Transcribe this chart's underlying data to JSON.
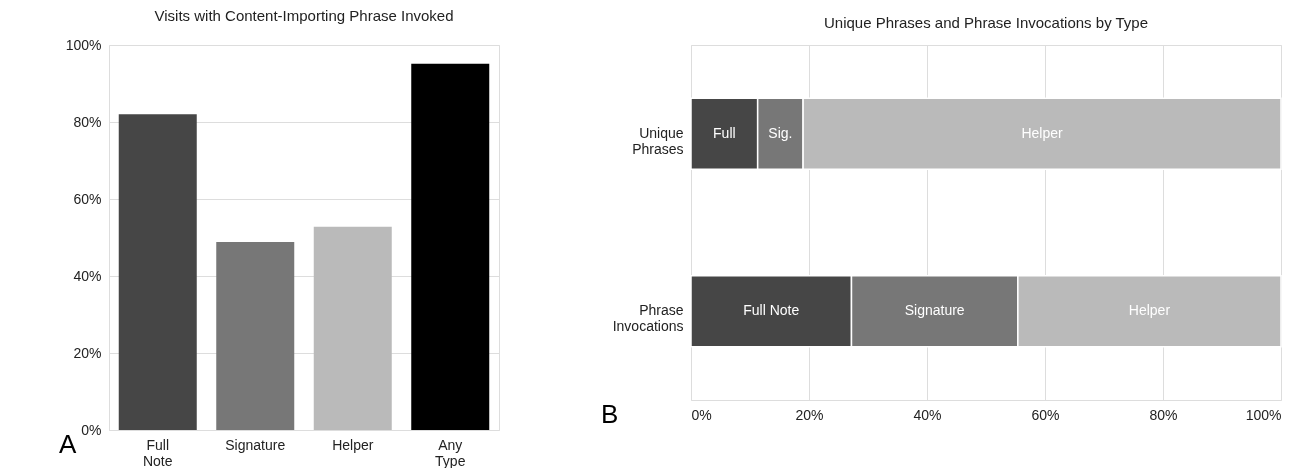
{
  "chart_data": [
    {
      "type": "bar",
      "title": "Visits with Content-Importing Phrase Invoked",
      "categories": [
        "Full Note",
        "Signature",
        "Helper",
        "Any Type"
      ],
      "values": [
        82,
        48.8,
        52.8,
        95.1
      ],
      "colors": [
        "#464646",
        "#777777",
        "#bababa",
        "#000000"
      ],
      "ylim": [
        0,
        100
      ],
      "yticks": [
        {
          "value": 0,
          "label": "0%"
        },
        {
          "value": 20,
          "label": "20%"
        },
        {
          "value": 40,
          "label": "40%"
        },
        {
          "value": 60,
          "label": "60%"
        },
        {
          "value": 80,
          "label": "80%"
        },
        {
          "value": 100,
          "label": "100%"
        }
      ],
      "grid": "y",
      "annotations": [
        "A"
      ]
    },
    {
      "type": "bar",
      "orientation": "horizontal",
      "stacked": true,
      "title": "Unique Phrases and Phrase Invocations by Type",
      "categories": [
        "Unique Phrases",
        "Phrase Invocations"
      ],
      "series": [
        {
          "color": "#464646",
          "values": [
            11.3,
            27.2
          ],
          "value_labels": [
            "Full",
            "Full Note"
          ]
        },
        {
          "color": "#777777",
          "values": [
            7.7,
            28.2
          ],
          "value_labels": [
            "Sig.",
            "Signature"
          ]
        },
        {
          "color": "#bababa",
          "values": [
            81.0,
            44.6
          ],
          "value_labels": [
            "Helper",
            "Helper"
          ]
        }
      ],
      "xlim": [
        0,
        100
      ],
      "xticks": [
        {
          "value": 0,
          "label": "0%"
        },
        {
          "value": 20,
          "label": "20%"
        },
        {
          "value": 40,
          "label": "40%"
        },
        {
          "value": 60,
          "label": "60%"
        },
        {
          "value": 80,
          "label": "80%"
        },
        {
          "value": 100,
          "label": "100%"
        }
      ],
      "grid": "x",
      "annotations": [
        "B"
      ]
    }
  ]
}
